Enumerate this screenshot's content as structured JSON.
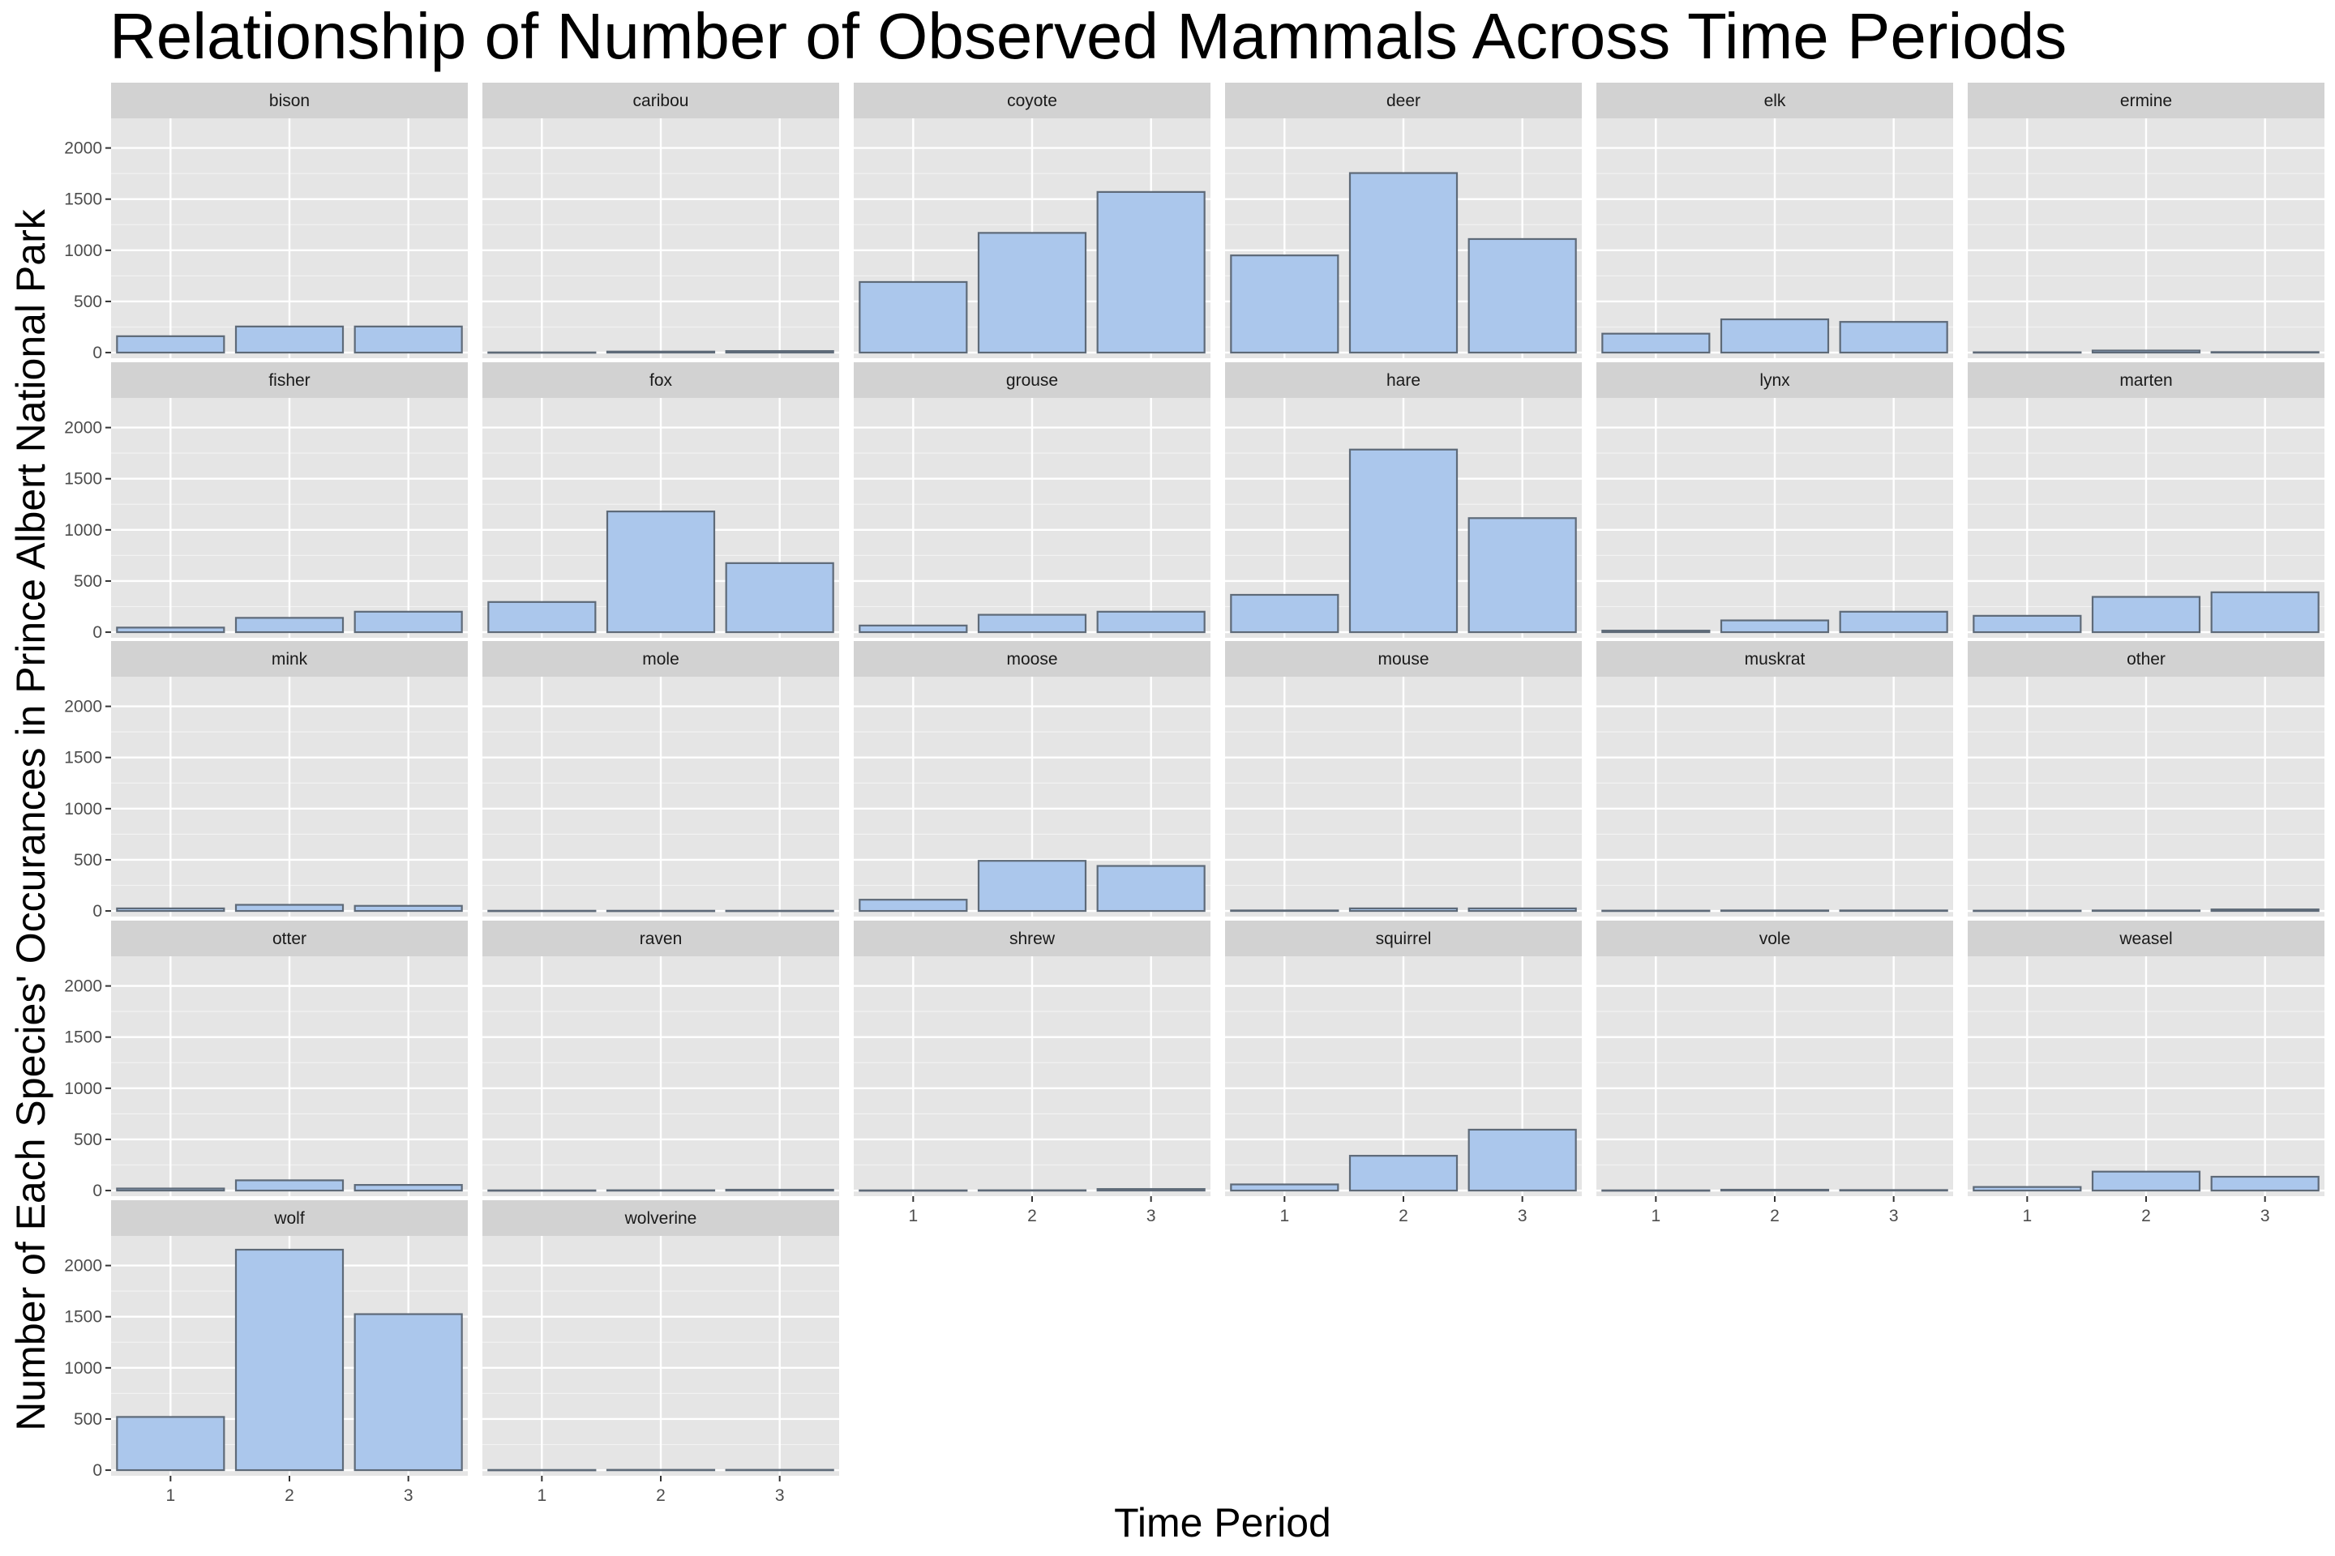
{
  "chart_data": {
    "type": "bar",
    "title": "Relationship of Number of Observed Mammals Across Time Periods",
    "xlabel": "Time Period",
    "ylabel": "Number of Each Species' Occurances in Prince Albert National Park",
    "categories": [
      "1",
      "2",
      "3"
    ],
    "ylim": [
      -55,
      2290
    ],
    "yticks": [
      0,
      500,
      1000,
      1500,
      2000
    ],
    "facet_columns": 6,
    "bar_fill": "#abc7ec",
    "bar_outline": "#5e6a78",
    "panel_background": "#e5e5e5",
    "strip_background": "#d2d2d2",
    "grid": true,
    "facets": [
      {
        "name": "bison",
        "values": [
          160,
          255,
          255
        ]
      },
      {
        "name": "caribou",
        "values": [
          2,
          10,
          15
        ]
      },
      {
        "name": "coyote",
        "values": [
          690,
          1170,
          1570
        ]
      },
      {
        "name": "deer",
        "values": [
          950,
          1755,
          1110
        ]
      },
      {
        "name": "elk",
        "values": [
          185,
          325,
          300
        ]
      },
      {
        "name": "ermine",
        "values": [
          3,
          20,
          5
        ]
      },
      {
        "name": "fisher",
        "values": [
          45,
          140,
          200
        ]
      },
      {
        "name": "fox",
        "values": [
          295,
          1180,
          675
        ]
      },
      {
        "name": "grouse",
        "values": [
          65,
          170,
          200
        ]
      },
      {
        "name": "hare",
        "values": [
          365,
          1785,
          1115
        ]
      },
      {
        "name": "lynx",
        "values": [
          15,
          115,
          200
        ]
      },
      {
        "name": "marten",
        "values": [
          160,
          345,
          390
        ]
      },
      {
        "name": "mink",
        "values": [
          25,
          60,
          50
        ]
      },
      {
        "name": "mole",
        "values": [
          2,
          2,
          2
        ]
      },
      {
        "name": "moose",
        "values": [
          110,
          490,
          440
        ]
      },
      {
        "name": "mouse",
        "values": [
          5,
          25,
          25
        ]
      },
      {
        "name": "muskrat",
        "values": [
          3,
          5,
          5
        ]
      },
      {
        "name": "other",
        "values": [
          3,
          5,
          15
        ]
      },
      {
        "name": "otter",
        "values": [
          20,
          100,
          55
        ]
      },
      {
        "name": "raven",
        "values": [
          2,
          3,
          8
        ]
      },
      {
        "name": "shrew",
        "values": [
          2,
          3,
          15
        ]
      },
      {
        "name": "squirrel",
        "values": [
          60,
          340,
          595
        ]
      },
      {
        "name": "vole",
        "values": [
          2,
          8,
          5
        ]
      },
      {
        "name": "weasel",
        "values": [
          35,
          185,
          135
        ]
      },
      {
        "name": "wolf",
        "values": [
          520,
          2155,
          1525
        ]
      },
      {
        "name": "wolverine",
        "values": [
          2,
          3,
          3
        ]
      }
    ]
  }
}
